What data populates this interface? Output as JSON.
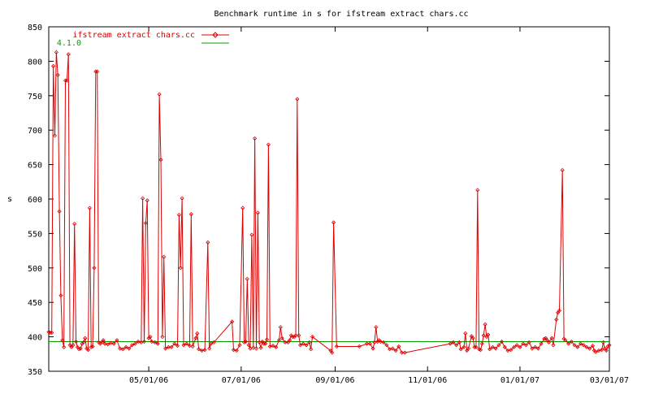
{
  "chart_data": {
    "type": "line",
    "title": "Benchmark runtime in s for ifstream extract chars.cc",
    "xlabel": "",
    "ylabel": "s",
    "ylim": [
      350,
      850
    ],
    "xlim": [
      "2006-02-24",
      "2007-03-01"
    ],
    "yticks": [
      350,
      400,
      450,
      500,
      550,
      600,
      650,
      700,
      750,
      800,
      850
    ],
    "xticks": [
      {
        "date": "2006-05-01",
        "label": "05/01/06"
      },
      {
        "date": "2006-07-01",
        "label": "07/01/06"
      },
      {
        "date": "2006-09-01",
        "label": "09/01/06"
      },
      {
        "date": "2006-11-01",
        "label": "11/01/06"
      },
      {
        "date": "2007-01-01",
        "label": "01/01/07"
      },
      {
        "date": "2007-03-01",
        "label": "03/01/07"
      }
    ],
    "grid": false,
    "legend_position": "top-left",
    "series": [
      {
        "name": "ifstream extract chars.cc",
        "color": "#dd0000",
        "marker": "diamond",
        "points": [
          [
            "2006-02-24",
            407
          ],
          [
            "2006-02-25",
            406
          ],
          [
            "2006-02-26",
            406
          ],
          [
            "2006-02-27",
            793
          ],
          [
            "2006-02-28",
            692
          ],
          [
            "2006-03-01",
            813
          ],
          [
            "2006-03-02",
            780
          ],
          [
            "2006-03-03",
            582
          ],
          [
            "2006-03-04",
            460
          ],
          [
            "2006-03-05",
            395
          ],
          [
            "2006-03-06",
            385
          ],
          [
            "2006-03-07",
            772
          ],
          [
            "2006-03-08",
            772
          ],
          [
            "2006-03-09",
            810
          ],
          [
            "2006-03-10",
            388
          ],
          [
            "2006-03-11",
            385
          ],
          [
            "2006-03-12",
            388
          ],
          [
            "2006-03-13",
            564
          ],
          [
            "2006-03-14",
            393
          ],
          [
            "2006-03-15",
            385
          ],
          [
            "2006-03-16",
            382
          ],
          [
            "2006-03-17",
            383
          ],
          [
            "2006-03-18",
            390
          ],
          [
            "2006-03-19",
            392
          ],
          [
            "2006-03-20",
            398
          ],
          [
            "2006-03-21",
            383
          ],
          [
            "2006-03-22",
            381
          ],
          [
            "2006-03-23",
            587
          ],
          [
            "2006-03-24",
            385
          ],
          [
            "2006-03-25",
            386
          ],
          [
            "2006-03-26",
            500
          ],
          [
            "2006-03-27",
            785
          ],
          [
            "2006-03-28",
            785
          ],
          [
            "2006-03-29",
            392
          ],
          [
            "2006-03-30",
            390
          ],
          [
            "2006-03-31",
            392
          ],
          [
            "2006-04-01",
            395
          ],
          [
            "2006-04-02",
            390
          ],
          [
            "2006-04-04",
            389
          ],
          [
            "2006-04-06",
            391
          ],
          [
            "2006-04-08",
            390
          ],
          [
            "2006-04-10",
            395
          ],
          [
            "2006-04-12",
            383
          ],
          [
            "2006-04-14",
            382
          ],
          [
            "2006-04-16",
            385
          ],
          [
            "2006-04-18",
            383
          ],
          [
            "2006-04-20",
            388
          ],
          [
            "2006-04-22",
            390
          ],
          [
            "2006-04-24",
            393
          ],
          [
            "2006-04-26",
            392
          ],
          [
            "2006-04-27",
            601
          ],
          [
            "2006-04-28",
            393
          ],
          [
            "2006-04-29",
            565
          ],
          [
            "2006-04-30",
            598
          ],
          [
            "2006-05-01",
            398
          ],
          [
            "2006-05-02",
            400
          ],
          [
            "2006-05-03",
            393
          ],
          [
            "2006-05-05",
            392
          ],
          [
            "2006-05-07",
            390
          ],
          [
            "2006-05-08",
            752
          ],
          [
            "2006-05-09",
            657
          ],
          [
            "2006-05-10",
            400
          ],
          [
            "2006-05-11",
            516
          ],
          [
            "2006-05-12",
            383
          ],
          [
            "2006-05-14",
            385
          ],
          [
            "2006-05-16",
            385
          ],
          [
            "2006-05-18",
            390
          ],
          [
            "2006-05-20",
            387
          ],
          [
            "2006-05-21",
            577
          ],
          [
            "2006-05-22",
            500
          ],
          [
            "2006-05-23",
            601
          ],
          [
            "2006-05-24",
            388
          ],
          [
            "2006-05-26",
            390
          ],
          [
            "2006-05-28",
            387
          ],
          [
            "2006-05-29",
            578
          ],
          [
            "2006-05-30",
            386
          ],
          [
            "2006-06-01",
            398
          ],
          [
            "2006-06-02",
            405
          ],
          [
            "2006-06-03",
            382
          ],
          [
            "2006-06-05",
            380
          ],
          [
            "2006-06-07",
            381
          ],
          [
            "2006-06-09",
            537
          ],
          [
            "2006-06-10",
            383
          ],
          [
            "2006-06-11",
            390
          ],
          [
            "2006-06-13",
            392
          ],
          [
            "2006-06-25",
            422
          ],
          [
            "2006-06-26",
            381
          ],
          [
            "2006-06-28",
            380
          ],
          [
            "2006-06-30",
            388
          ],
          [
            "2006-07-02",
            587
          ],
          [
            "2006-07-03",
            392
          ],
          [
            "2006-07-04",
            393
          ],
          [
            "2006-07-05",
            484
          ],
          [
            "2006-07-06",
            388
          ],
          [
            "2006-07-07",
            383
          ],
          [
            "2006-07-08",
            548
          ],
          [
            "2006-07-09",
            384
          ],
          [
            "2006-07-10",
            688
          ],
          [
            "2006-07-11",
            383
          ],
          [
            "2006-07-12",
            580
          ],
          [
            "2006-07-13",
            392
          ],
          [
            "2006-07-14",
            384
          ],
          [
            "2006-07-15",
            393
          ],
          [
            "2006-07-16",
            390
          ],
          [
            "2006-07-17",
            390
          ],
          [
            "2006-07-18",
            396
          ],
          [
            "2006-07-19",
            679
          ],
          [
            "2006-07-20",
            386
          ],
          [
            "2006-07-22",
            387
          ],
          [
            "2006-07-24",
            385
          ],
          [
            "2006-07-26",
            395
          ],
          [
            "2006-07-27",
            414
          ],
          [
            "2006-07-28",
            398
          ],
          [
            "2006-07-30",
            392
          ],
          [
            "2006-08-01",
            392
          ],
          [
            "2006-08-02",
            395
          ],
          [
            "2006-08-03",
            402
          ],
          [
            "2006-08-04",
            400
          ],
          [
            "2006-08-05",
            400
          ],
          [
            "2006-08-06",
            402
          ],
          [
            "2006-08-07",
            745
          ],
          [
            "2006-08-08",
            402
          ],
          [
            "2006-08-09",
            388
          ],
          [
            "2006-08-11",
            390
          ],
          [
            "2006-08-13",
            388
          ],
          [
            "2006-08-15",
            392
          ],
          [
            "2006-08-16",
            382
          ],
          [
            "2006-08-17",
            400
          ],
          [
            "2006-08-29",
            380
          ],
          [
            "2006-08-30",
            377
          ],
          [
            "2006-08-31",
            566
          ],
          [
            "2006-09-02",
            386
          ],
          [
            "2006-09-17",
            386
          ],
          [
            "2006-09-22",
            390
          ],
          [
            "2006-09-24",
            390
          ],
          [
            "2006-09-26",
            383
          ],
          [
            "2006-09-27",
            392
          ],
          [
            "2006-09-28",
            414
          ],
          [
            "2006-09-29",
            393
          ],
          [
            "2006-09-30",
            395
          ],
          [
            "2006-10-01",
            393
          ],
          [
            "2006-10-03",
            392
          ],
          [
            "2006-10-05",
            388
          ],
          [
            "2006-10-07",
            382
          ],
          [
            "2006-10-09",
            383
          ],
          [
            "2006-10-11",
            380
          ],
          [
            "2006-10-13",
            386
          ],
          [
            "2006-10-15",
            377
          ],
          [
            "2006-10-17",
            377
          ],
          [
            "2006-11-16",
            390
          ],
          [
            "2006-11-18",
            392
          ],
          [
            "2006-11-20",
            388
          ],
          [
            "2006-11-22",
            392
          ],
          [
            "2006-11-23",
            382
          ],
          [
            "2006-11-25",
            385
          ],
          [
            "2006-11-26",
            405
          ],
          [
            "2006-11-27",
            380
          ],
          [
            "2006-11-28",
            383
          ],
          [
            "2006-11-30",
            401
          ],
          [
            "2006-12-01",
            398
          ],
          [
            "2006-12-02",
            385
          ],
          [
            "2006-12-03",
            385
          ],
          [
            "2006-12-04",
            613
          ],
          [
            "2006-12-05",
            382
          ],
          [
            "2006-12-06",
            381
          ],
          [
            "2006-12-07",
            390
          ],
          [
            "2006-12-08",
            402
          ],
          [
            "2006-12-09",
            418
          ],
          [
            "2006-12-10",
            400
          ],
          [
            "2006-12-11",
            403
          ],
          [
            "2006-12-12",
            382
          ],
          [
            "2006-12-14",
            385
          ],
          [
            "2006-12-16",
            383
          ],
          [
            "2006-12-18",
            388
          ],
          [
            "2006-12-20",
            393
          ],
          [
            "2006-12-22",
            385
          ],
          [
            "2006-12-24",
            380
          ],
          [
            "2006-12-26",
            381
          ],
          [
            "2006-12-28",
            385
          ],
          [
            "2006-12-30",
            388
          ],
          [
            "2007-01-01",
            385
          ],
          [
            "2007-01-03",
            390
          ],
          [
            "2007-01-05",
            388
          ],
          [
            "2007-01-07",
            392
          ],
          [
            "2007-01-09",
            383
          ],
          [
            "2007-01-11",
            385
          ],
          [
            "2007-01-13",
            383
          ],
          [
            "2007-01-15",
            390
          ],
          [
            "2007-01-17",
            397
          ],
          [
            "2007-01-18",
            398
          ],
          [
            "2007-01-19",
            395
          ],
          [
            "2007-01-20",
            392
          ],
          [
            "2007-01-22",
            398
          ],
          [
            "2007-01-23",
            388
          ],
          [
            "2007-01-25",
            425
          ],
          [
            "2007-01-26",
            435
          ],
          [
            "2007-01-27",
            438
          ],
          [
            "2007-01-29",
            642
          ],
          [
            "2007-01-30",
            397
          ],
          [
            "2007-01-31",
            395
          ],
          [
            "2007-02-02",
            390
          ],
          [
            "2007-02-04",
            393
          ],
          [
            "2007-02-06",
            388
          ],
          [
            "2007-02-08",
            385
          ],
          [
            "2007-02-10",
            390
          ],
          [
            "2007-02-12",
            388
          ],
          [
            "2007-02-14",
            385
          ],
          [
            "2007-02-16",
            383
          ],
          [
            "2007-02-18",
            387
          ],
          [
            "2007-02-19",
            380
          ],
          [
            "2007-02-20",
            378
          ],
          [
            "2007-02-22",
            380
          ],
          [
            "2007-02-24",
            381
          ],
          [
            "2007-02-25",
            392
          ],
          [
            "2007-02-26",
            383
          ],
          [
            "2007-02-27",
            380
          ],
          [
            "2007-02-28",
            386
          ],
          [
            "2007-03-01",
            388
          ]
        ]
      },
      {
        "name": "4.1.0",
        "color": "#00a000",
        "marker": "none",
        "constant": 393,
        "x_range": [
          "2006-02-24",
          "2007-03-01"
        ]
      }
    ]
  }
}
